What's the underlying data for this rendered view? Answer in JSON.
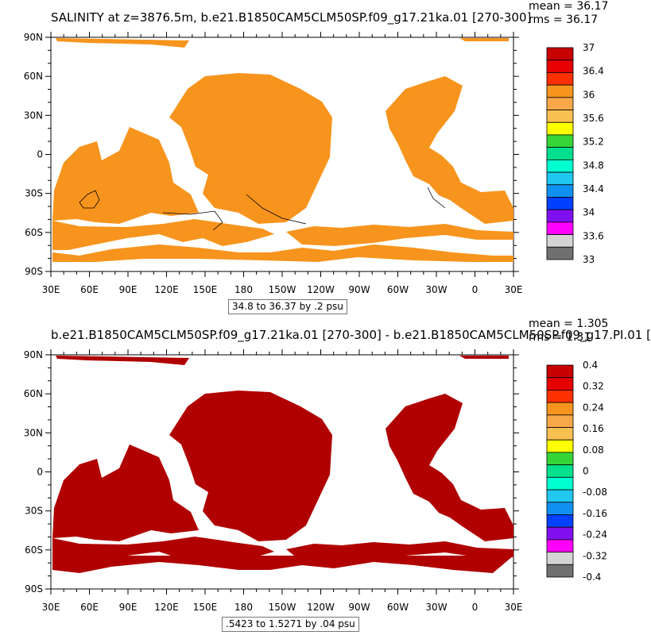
{
  "colors": {
    "salinity_fill": "#f7941d",
    "difference_fill": "#b00000",
    "coastline": "#000000"
  },
  "chart_data": [
    {
      "type": "heatmap",
      "title": "SALINITY at z=3876.5m, b.e21.B1850CAM5CLM50SP.f09_g17.21ka.01 [270-300]",
      "stats": [
        "mean = 36.17",
        "rms = 36.17"
      ],
      "x_tick_labels": [
        "30E",
        "60E",
        "90E",
        "120E",
        "150E",
        "180",
        "150W",
        "120W",
        "90W",
        "60W",
        "30W",
        "0",
        "30E"
      ],
      "y_tick_labels": [
        "90N",
        "60N",
        "30N",
        "0",
        "30S",
        "60S",
        "90S"
      ],
      "xlim": [
        30,
        390
      ],
      "ylim": [
        -90,
        90
      ],
      "colorbar": {
        "labels": [
          "37",
          "36.4",
          "36",
          "35.6",
          "35.2",
          "34.8",
          "34.4",
          "34",
          "33.6",
          "33"
        ],
        "colors": [
          "#c80000",
          "#e60000",
          "#ff3000",
          "#f7941d",
          "#f8a848",
          "#f8c050",
          "#ffff00",
          "#36d536",
          "#00e08c",
          "#00ffd0",
          "#20c8f0",
          "#1090f0",
          "#0040ff",
          "#8010f0",
          "#ff00ff",
          "#d4d4d4",
          "#707070"
        ]
      },
      "range_label": "34.8 to 36.37 by .2 psu"
    },
    {
      "type": "heatmap",
      "title": "b.e21.B1850CAM5CLM50SP.f09_g17.21ka.01 [270-300] - b.e21.B1850CAM5CLM50SP.f09_g17.PI.01 [",
      "stats": [
        "mean = 1.305",
        "rms = 1.31"
      ],
      "x_tick_labels": [
        "30E",
        "60E",
        "90E",
        "120E",
        "150E",
        "180",
        "150W",
        "120W",
        "90W",
        "60W",
        "30W",
        "0",
        "30E"
      ],
      "y_tick_labels": [
        "90N",
        "60N",
        "30N",
        "0",
        "30S",
        "60S",
        "90S"
      ],
      "xlim": [
        30,
        390
      ],
      "ylim": [
        -90,
        90
      ],
      "colorbar": {
        "labels": [
          "0.4",
          "0.32",
          "0.24",
          "0.16",
          "0.08",
          "0",
          "-0.08",
          "-0.16",
          "-0.24",
          "-0.32",
          "-0.4"
        ],
        "colors": [
          "#c80000",
          "#e60000",
          "#ff3000",
          "#f7941d",
          "#f8a848",
          "#f8c050",
          "#ffff00",
          "#36d536",
          "#00e08c",
          "#00ffd0",
          "#20c8f0",
          "#1090f0",
          "#0040ff",
          "#8010f0",
          "#ff00ff",
          "#d4d4d4",
          "#707070"
        ]
      },
      "range_label": ".5423 to 1.5271 by .04 psu"
    }
  ]
}
